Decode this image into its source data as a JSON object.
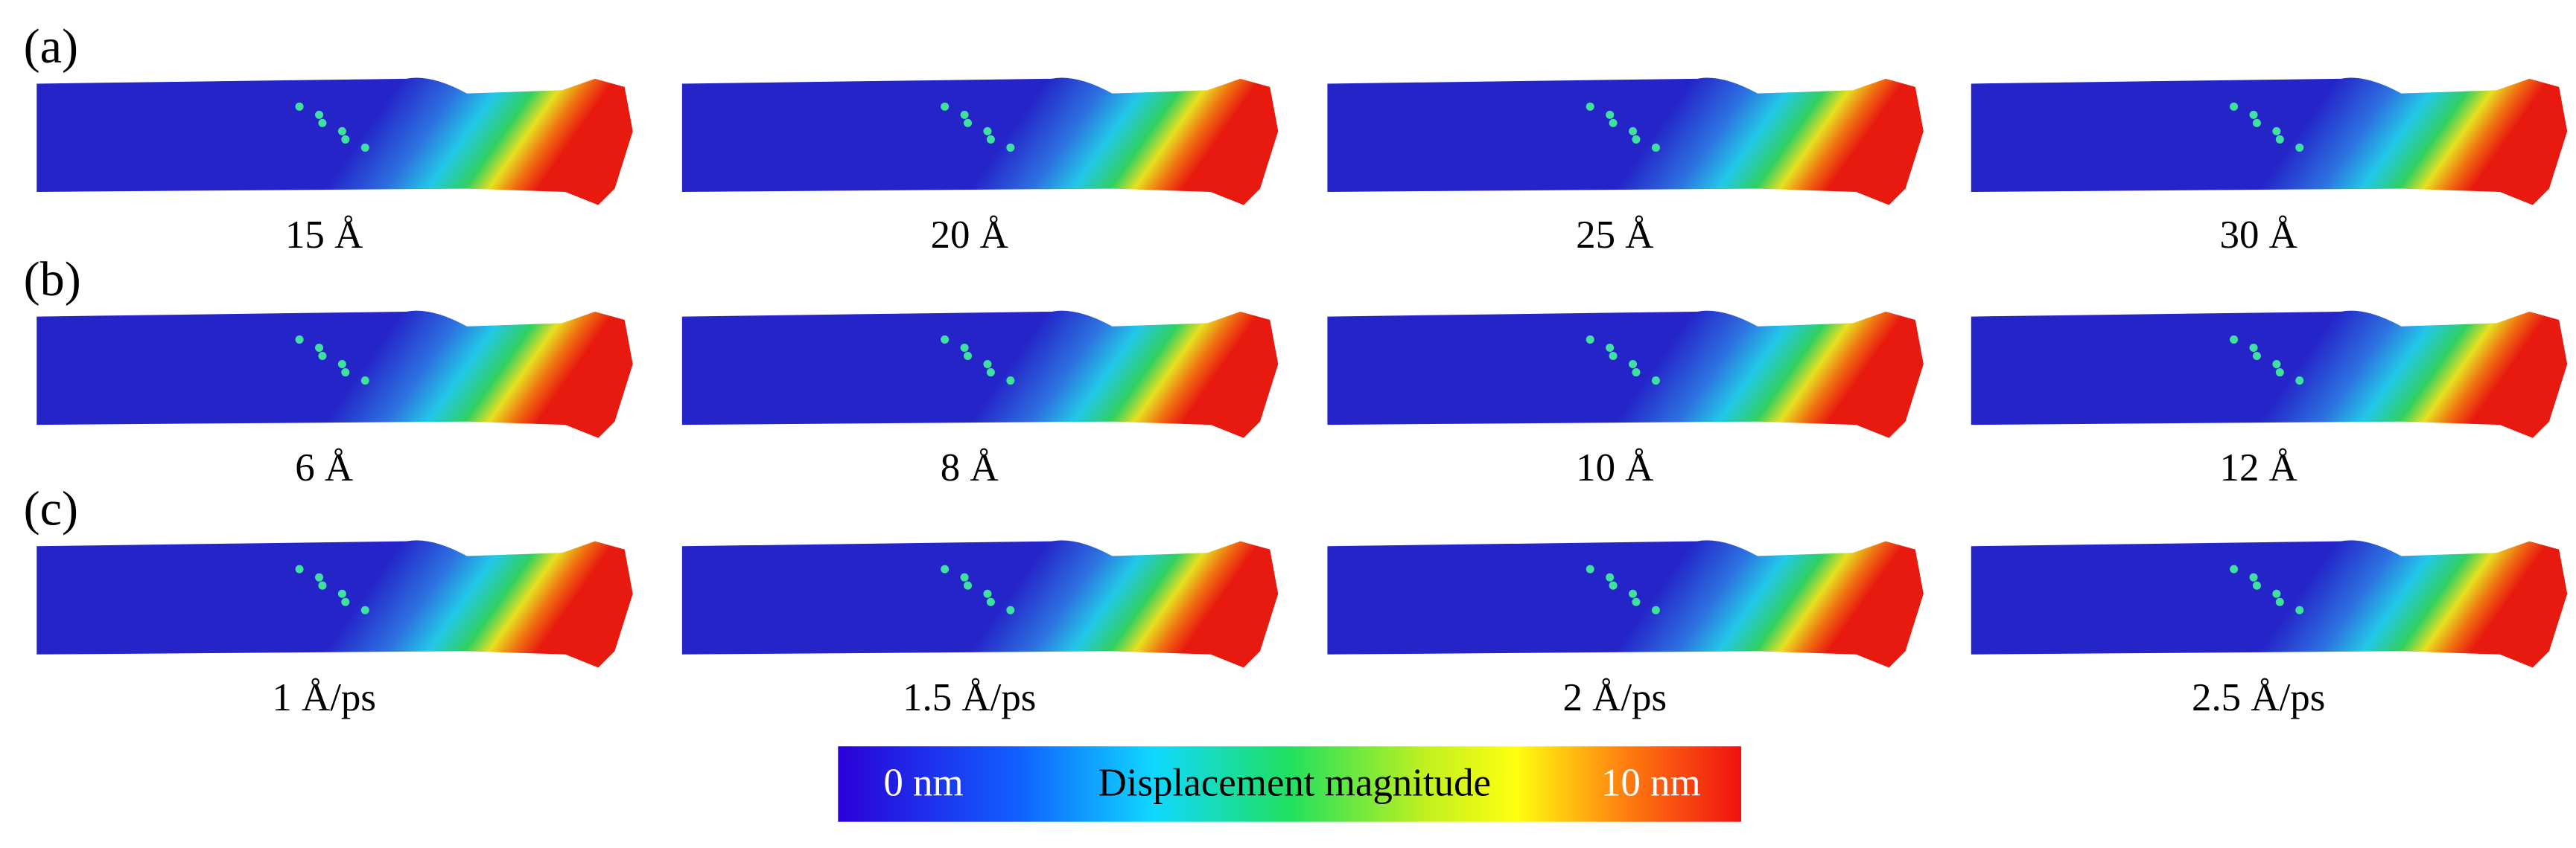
{
  "panels": [
    {
      "label": "(a)",
      "captions": [
        "15 Å",
        "20 Å",
        "25 Å",
        "30 Å"
      ]
    },
    {
      "label": "(b)",
      "captions": [
        "6 Å",
        "8 Å",
        "10 Å",
        "12 Å"
      ]
    },
    {
      "label": "(c)",
      "captions": [
        "1 Å/ps",
        "1.5 Å/ps",
        "2 Å/ps",
        "2.5 Å/ps"
      ]
    }
  ],
  "colorbar": {
    "min_label": "0 nm",
    "title": "Displacement magnitude",
    "max_label": "10 nm"
  }
}
